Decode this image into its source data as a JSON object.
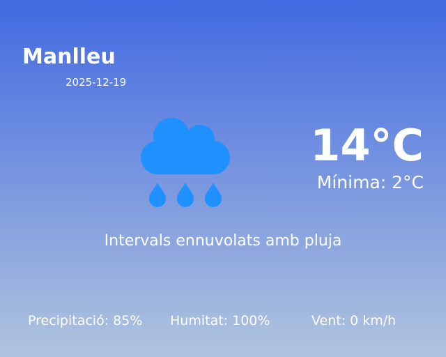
{
  "city": "Manlleu",
  "date": "2025-12-19",
  "weather_icon": "cloud-rain-icon",
  "colors": {
    "gradient_top": "#4169e1",
    "gradient_bottom": "#b0c4de",
    "icon": "#1e90ff",
    "text": "#ffffff"
  },
  "temperature": "14°C",
  "minimum": "Mínima: 2°C",
  "description": "Intervals ennuvolats amb pluja",
  "stats": {
    "precipitation": "Precipitació: 85%",
    "humidity": "Humitat: 100%",
    "wind": "Vent: 0 km/h"
  }
}
